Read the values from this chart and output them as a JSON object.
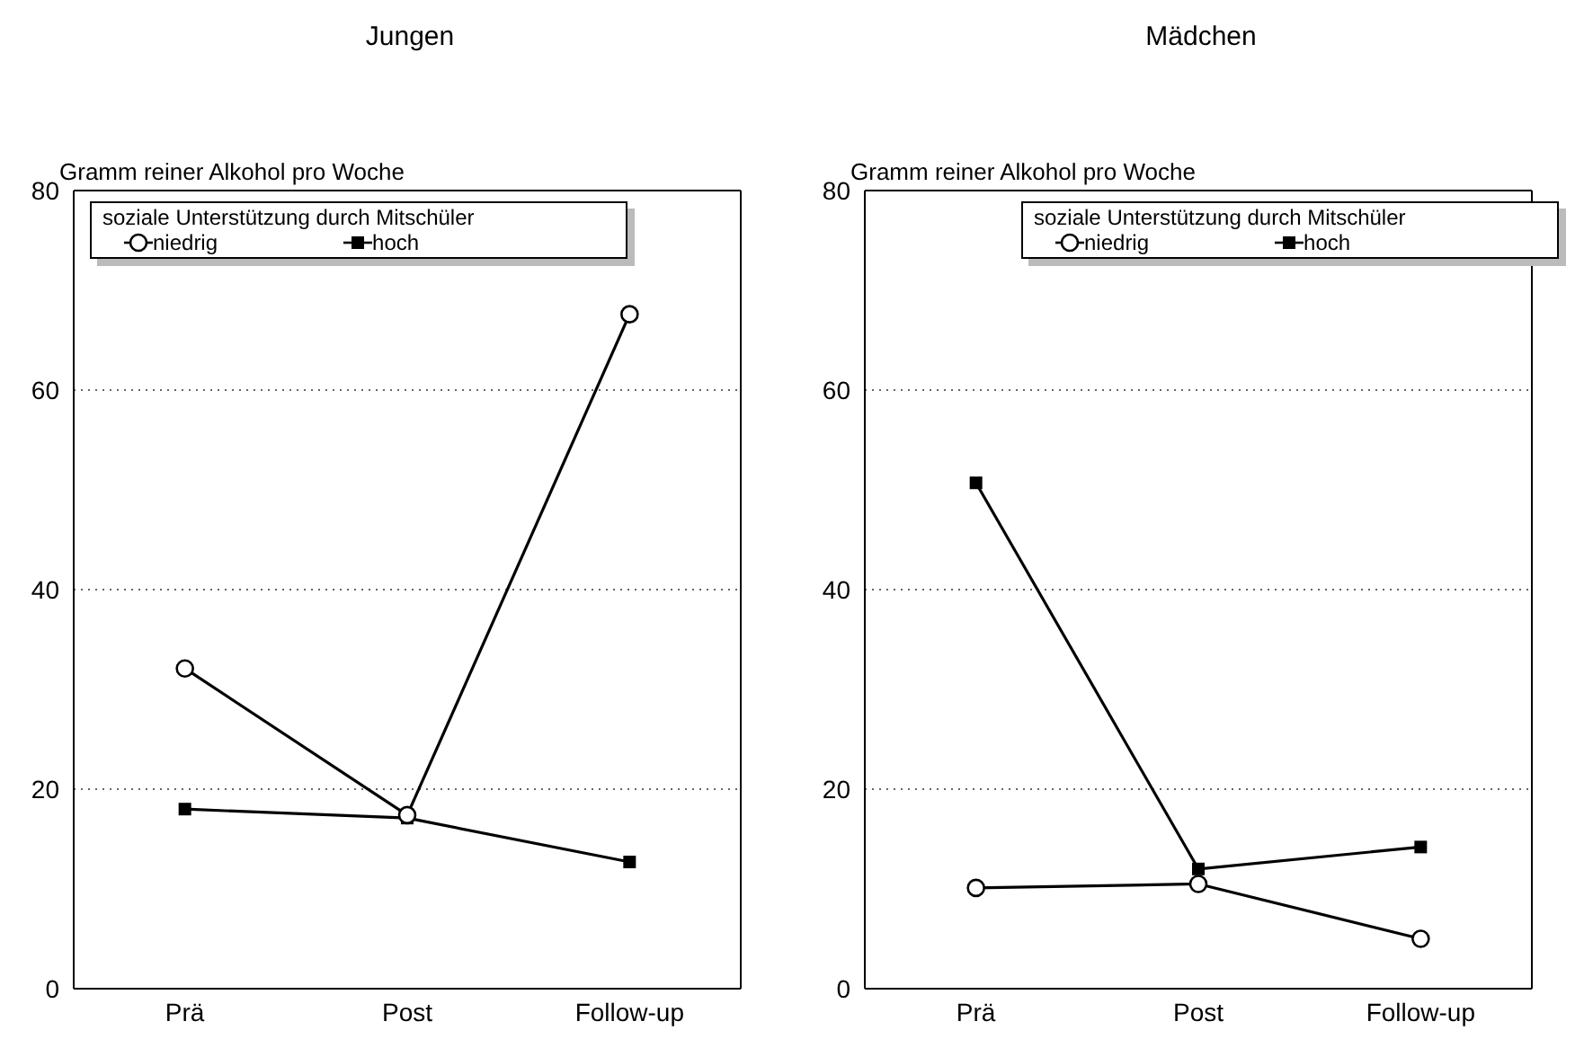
{
  "chart_data": [
    {
      "type": "line",
      "title": "Jungen",
      "ylabel": "Gramm reiner Alkohol pro Woche",
      "legend_title": "soziale Unterstützung durch Mitschüler",
      "categories": [
        "Prä",
        "Post",
        "Follow-up"
      ],
      "ylim": [
        0,
        80
      ],
      "yticks": [
        0,
        20,
        40,
        60,
        80
      ],
      "grid": "y",
      "legend": "top",
      "series": [
        {
          "name": "niedrig",
          "color": "#000000",
          "marker": "circle",
          "values": [
            32.1,
            17.4,
            67.6
          ]
        },
        {
          "name": "hoch",
          "color": "#000000",
          "marker": "square",
          "values": [
            18.0,
            17.1,
            12.7
          ]
        }
      ]
    },
    {
      "type": "line",
      "title": "Mädchen",
      "ylabel": "Gramm reiner Alkohol pro Woche",
      "legend_title": "soziale Unterstützung durch Mitschüler",
      "categories": [
        "Prä",
        "Post",
        "Follow-up"
      ],
      "ylim": [
        0,
        80
      ],
      "yticks": [
        0,
        20,
        40,
        60,
        80
      ],
      "grid": "y",
      "legend": "top right",
      "series": [
        {
          "name": "niedrig",
          "color": "#000000",
          "marker": "circle",
          "values": [
            10.1,
            10.5,
            5.0
          ]
        },
        {
          "name": "hoch",
          "color": "#000000",
          "marker": "square",
          "values": [
            50.7,
            12.0,
            14.2
          ]
        }
      ]
    }
  ]
}
